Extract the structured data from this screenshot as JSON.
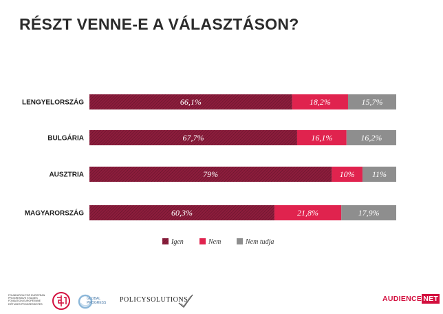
{
  "title": "RÉSZT VENNE-E A VÁLASZTÁSON?",
  "chart_data": {
    "type": "bar",
    "orientation": "horizontal",
    "stacked": true,
    "title": "RÉSZT VENNE-E A VÁLASZTÁSON?",
    "categories": [
      "LENGYELORSZÁG",
      "BULGÁRIA",
      "AUSZTRIA",
      "MAGYARORSZÁG"
    ],
    "series": [
      {
        "name": "Igen",
        "values": [
          66.1,
          67.7,
          79,
          60.3
        ],
        "labels": [
          "66,1%",
          "67,7%",
          "79%",
          "60,3%"
        ],
        "color": "#8c1d3c",
        "pattern": "hatched"
      },
      {
        "name": "Nem",
        "values": [
          18.2,
          16.1,
          10,
          21.8
        ],
        "labels": [
          "18,2%",
          "16,1%",
          "10%",
          "21,8%"
        ],
        "color": "#e0234e"
      },
      {
        "name": "Nem tudja",
        "values": [
          15.7,
          16.2,
          11,
          17.9
        ],
        "labels": [
          "15,7%",
          "16,2%",
          "11%",
          "17,9%"
        ],
        "color": "#8e8e8e"
      }
    ],
    "xlim": [
      0,
      100
    ],
    "grid": false,
    "legend_position": "bottom"
  },
  "footer": {
    "feps_text": "FOUNDATION FOR EUROPEAN PROGRESSIVE STUDIES FONDATION EUROPÉENNE D'ÉTUDES PROGRESSISTES",
    "global_progress": "GLOBAL PROGRESS",
    "policy_solutions": "POLICYSOLUTIONS",
    "audience": "AUDIENCE",
    "net": "NET"
  }
}
